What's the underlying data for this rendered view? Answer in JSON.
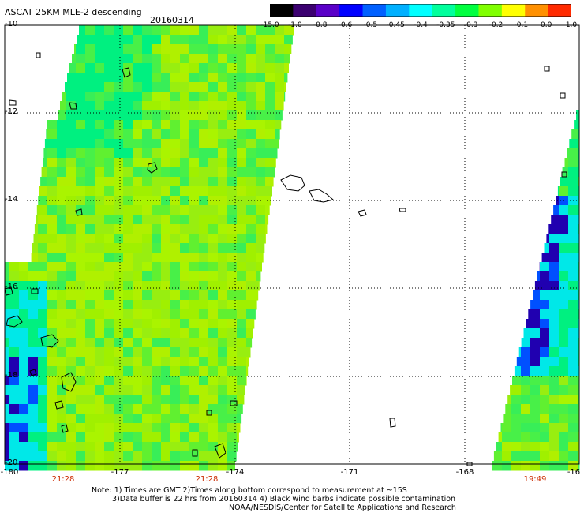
{
  "header": {
    "title": "ASCAT 25KM MLE-2 descending",
    "date": "20160314"
  },
  "colorbar": {
    "labels": [
      "-15.0",
      "-1.0",
      "-0.8",
      "-0.6",
      "-0.5",
      "-0.45",
      "-0.4",
      "-0.35",
      "-0.3",
      "-0.2",
      "-0.1",
      "0.0",
      "1.0"
    ],
    "colors": [
      "#000000",
      "#3b0070",
      "#5a00c8",
      "#0000ff",
      "#0060ff",
      "#00b0ff",
      "#00ffff",
      "#00ff9c",
      "#00ff40",
      "#80ff00",
      "#ffff00",
      "#ff9000",
      "#ff2a00"
    ]
  },
  "axes": {
    "lat_labels": [
      "-10",
      "-12",
      "-14",
      "-16",
      "-18",
      "-20"
    ],
    "lon_labels": [
      "-180",
      "-177",
      "-174",
      "-171",
      "-168",
      "-16"
    ]
  },
  "times": [
    "21:28",
    "21:28",
    "19:49"
  ],
  "notes": {
    "line1": "Note: 1) Times are GMT 2)Times along bottom correspond to measurement at ~15S",
    "line2": "3)Data buffer is 22 hrs from 20160314 4) Black wind barbs indicate possible contamination",
    "line3": "NOAA/NESDIS/Center for Satellite Applications and Research"
  },
  "map_colors": {
    "lime": "#a6f000",
    "green": "#40f040",
    "teal": "#00f080",
    "cyan": "#00e8e8",
    "blue": "#0050ff",
    "deep_blue": "#2000b0"
  }
}
